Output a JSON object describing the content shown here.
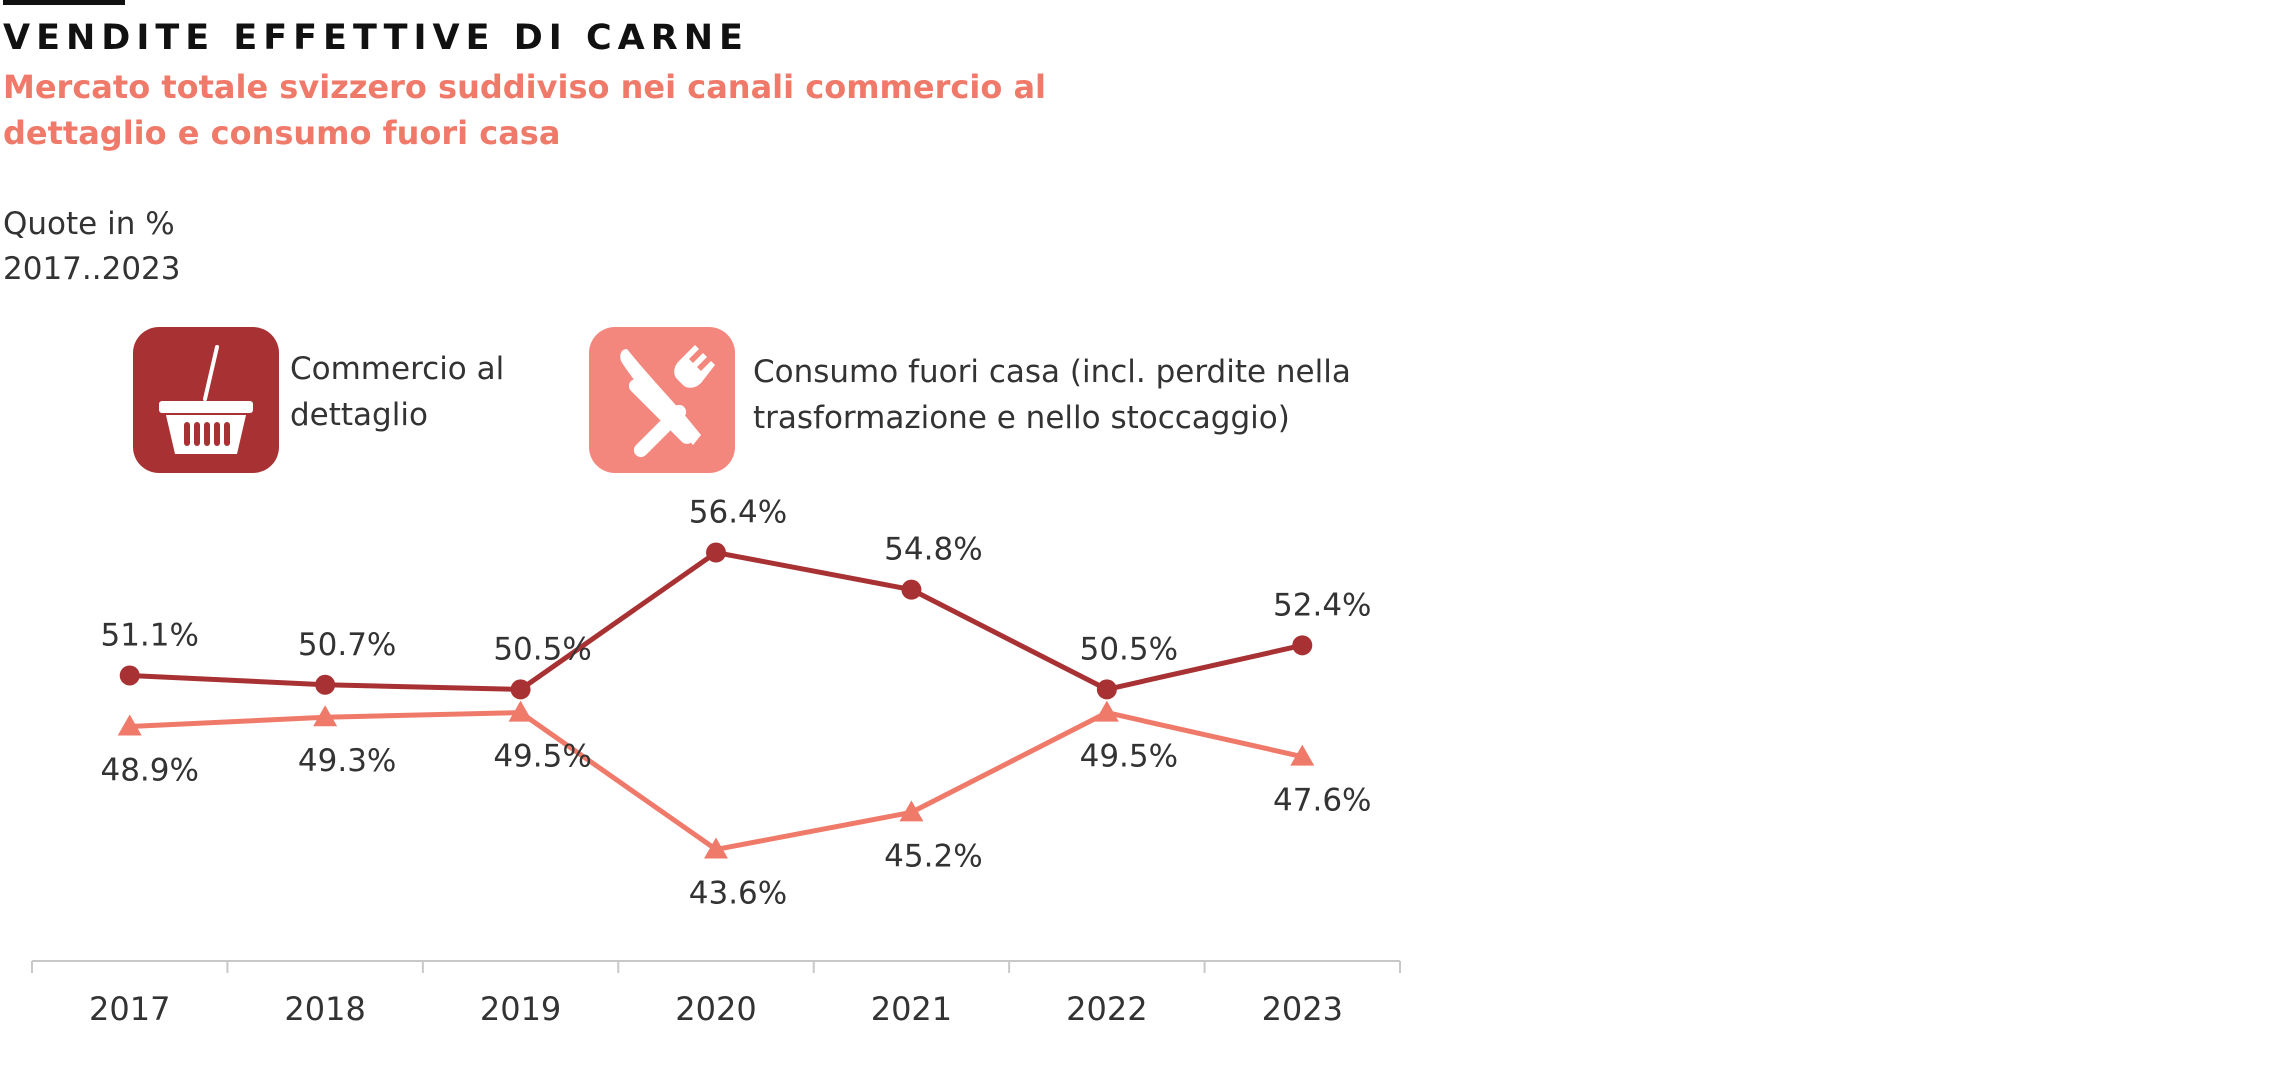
{
  "header": {
    "title": "VENDITE EFFETTIVE DI CARNE",
    "subtitle": "Mercato totale svizzero suddiviso nei canali commercio al dettaglio e consumo fuori casa",
    "unit_line": "Quote in %",
    "period_line": "2017..2023"
  },
  "legend": [
    {
      "label": "Commercio al dettaglio",
      "icon": "shopping-basket-icon",
      "color": "#a83233"
    },
    {
      "label": "Consumo fuori casa (incl. perdite nella trasformazione e nello stoccaggio)",
      "icon": "knife-fork-icon",
      "color": "#f4877d"
    }
  ],
  "chart_data": {
    "type": "line",
    "x": [
      "2017",
      "2018",
      "2019",
      "2020",
      "2021",
      "2022",
      "2023"
    ],
    "ylabel": "Quote in %",
    "series": [
      {
        "name": "Commercio al dettaglio",
        "values": [
          51.1,
          50.7,
          50.5,
          56.4,
          54.8,
          50.5,
          52.4
        ],
        "labels": [
          "51.1%",
          "50.7%",
          "50.5%",
          "56.4%",
          "54.8%",
          "50.5%",
          "52.4%"
        ],
        "marker": "circle",
        "color": "#a83233"
      },
      {
        "name": "Consumo fuori casa (incl. perdite nella trasformazione e nello stoccaggio)",
        "values": [
          48.9,
          49.3,
          49.5,
          43.6,
          45.2,
          49.5,
          47.6
        ],
        "labels": [
          "48.9%",
          "49.3%",
          "49.5%",
          "43.6%",
          "45.2%",
          "49.5%",
          "47.6%"
        ],
        "marker": "triangle",
        "color": "#f07a6a"
      }
    ],
    "grid": false,
    "legend_position": "top"
  }
}
